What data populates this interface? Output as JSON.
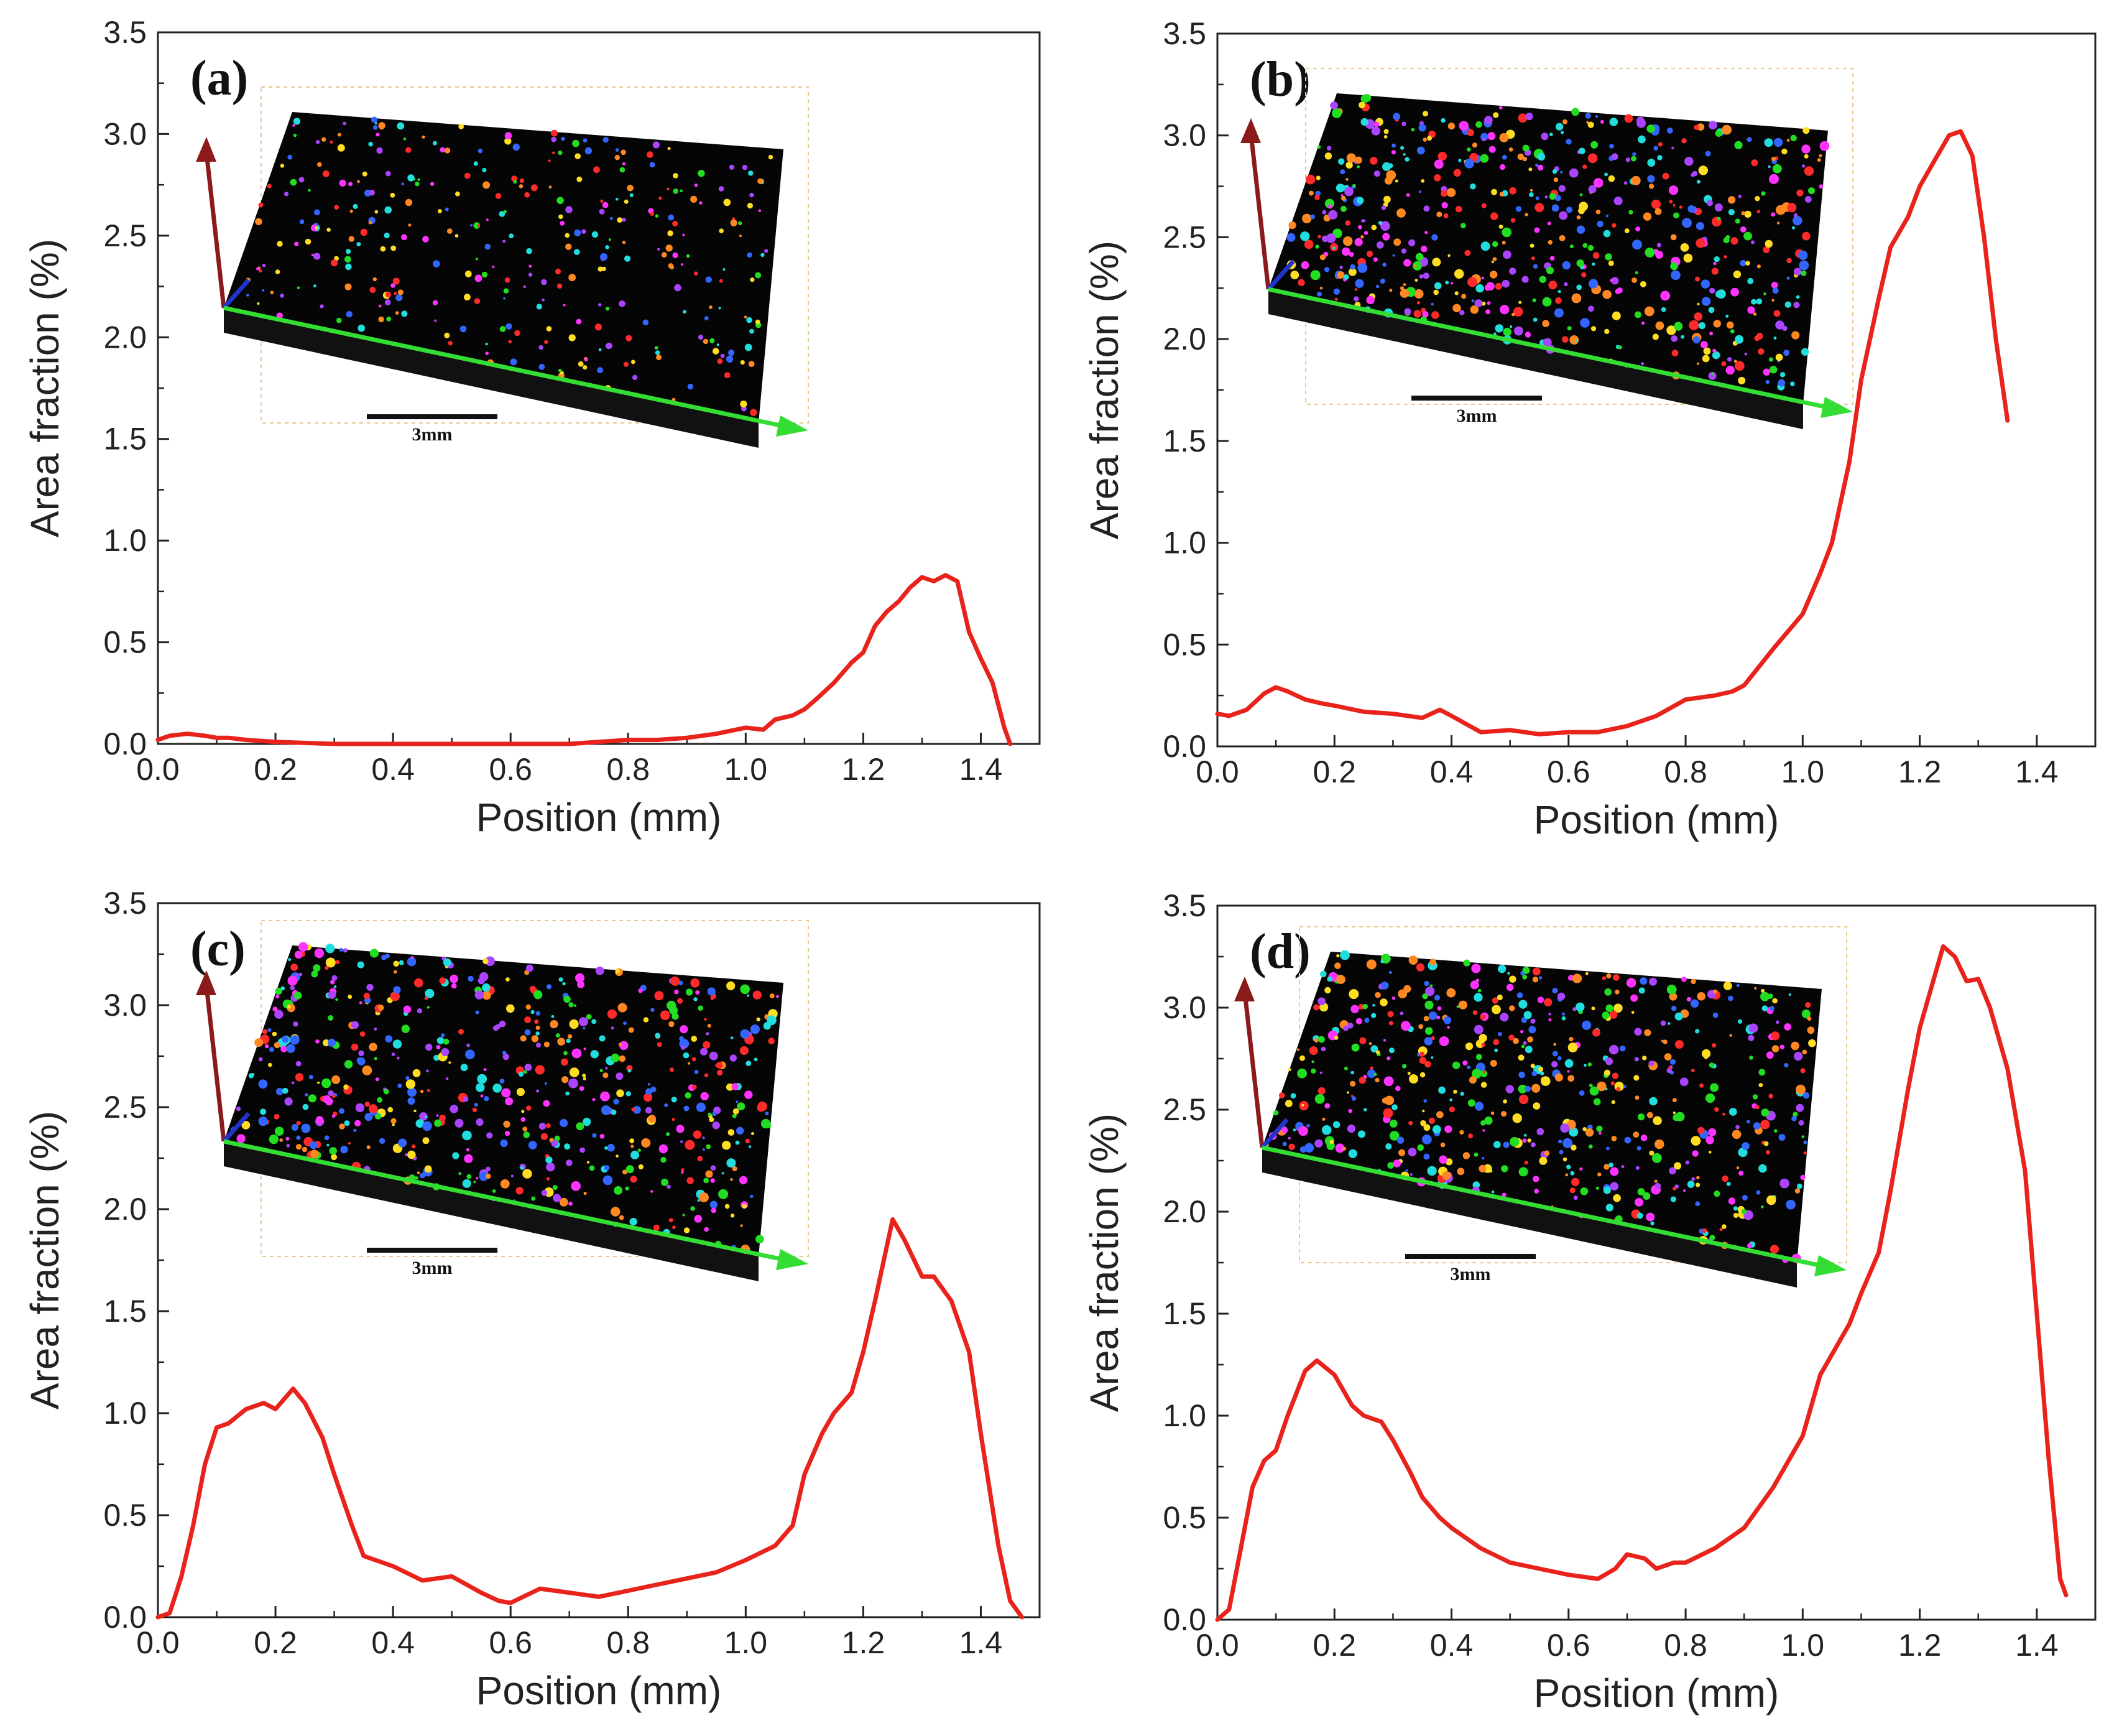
{
  "chart_data": [
    {
      "type": "line",
      "panel_label": "(a)",
      "xlabel": "Position (mm)",
      "ylabel": "Area fraction (%)",
      "xlim": [
        0.0,
        1.5
      ],
      "ylim": [
        0.0,
        3.5
      ],
      "x_ticks": [
        "0.0",
        "0.2",
        "0.4",
        "0.6",
        "0.8",
        "1.0",
        "1.2",
        "1.4"
      ],
      "y_ticks": [
        "0.0",
        "0.5",
        "1.0",
        "1.5",
        "2.0",
        "2.5",
        "3.0",
        "3.5"
      ],
      "grid": false,
      "line_color": "#e8231c",
      "inset_scale_label": "3mm",
      "series": [
        {
          "x": [
            0.0,
            0.02,
            0.05,
            0.08,
            0.1,
            0.12,
            0.15,
            0.2,
            0.3,
            0.4,
            0.5,
            0.6,
            0.7,
            0.8,
            0.85,
            0.9,
            0.95,
            1.0,
            1.03,
            1.05,
            1.08,
            1.1,
            1.12,
            1.15,
            1.18,
            1.2,
            1.22,
            1.24,
            1.26,
            1.28,
            1.3,
            1.32,
            1.34,
            1.36,
            1.38,
            1.4,
            1.42,
            1.44,
            1.45
          ],
          "y": [
            0.02,
            0.04,
            0.05,
            0.04,
            0.03,
            0.03,
            0.02,
            0.01,
            0.0,
            0.0,
            0.0,
            0.0,
            0.0,
            0.02,
            0.02,
            0.03,
            0.05,
            0.08,
            0.07,
            0.12,
            0.14,
            0.17,
            0.22,
            0.3,
            0.4,
            0.45,
            0.58,
            0.65,
            0.7,
            0.77,
            0.82,
            0.8,
            0.83,
            0.8,
            0.55,
            0.42,
            0.3,
            0.08,
            0.0
          ]
        }
      ]
    },
    {
      "type": "line",
      "panel_label": "(b)",
      "xlabel": "Position (mm)",
      "ylabel": "Area fraction (%)",
      "xlim": [
        0.0,
        1.5
      ],
      "ylim": [
        0.0,
        3.5
      ],
      "x_ticks": [
        "0.0",
        "0.2",
        "0.4",
        "0.6",
        "0.8",
        "1.0",
        "1.2",
        "1.4"
      ],
      "y_ticks": [
        "0.0",
        "0.5",
        "1.0",
        "1.5",
        "2.0",
        "2.5",
        "3.0",
        "3.5"
      ],
      "grid": false,
      "line_color": "#e8231c",
      "inset_scale_label": "3mm",
      "series": [
        {
          "x": [
            0.0,
            0.02,
            0.05,
            0.08,
            0.1,
            0.12,
            0.15,
            0.18,
            0.2,
            0.25,
            0.3,
            0.35,
            0.38,
            0.4,
            0.45,
            0.5,
            0.55,
            0.6,
            0.65,
            0.7,
            0.75,
            0.8,
            0.85,
            0.88,
            0.9,
            0.95,
            1.0,
            1.03,
            1.05,
            1.08,
            1.1,
            1.13,
            1.15,
            1.18,
            1.2,
            1.22,
            1.25,
            1.27,
            1.29,
            1.31,
            1.33,
            1.35
          ],
          "y": [
            0.16,
            0.15,
            0.18,
            0.26,
            0.29,
            0.27,
            0.23,
            0.21,
            0.2,
            0.17,
            0.16,
            0.14,
            0.18,
            0.15,
            0.07,
            0.08,
            0.06,
            0.07,
            0.07,
            0.1,
            0.15,
            0.23,
            0.25,
            0.27,
            0.3,
            0.48,
            0.65,
            0.85,
            1.0,
            1.4,
            1.8,
            2.2,
            2.45,
            2.6,
            2.75,
            2.85,
            3.0,
            3.02,
            2.9,
            2.5,
            2.0,
            1.6
          ]
        }
      ]
    },
    {
      "type": "line",
      "panel_label": "(c)",
      "xlabel": "Position (mm)",
      "ylabel": "Area fraction (%)",
      "xlim": [
        0.0,
        1.5
      ],
      "ylim": [
        0.0,
        3.5
      ],
      "x_ticks": [
        "0.0",
        "0.2",
        "0.4",
        "0.6",
        "0.8",
        "1.0",
        "1.2",
        "1.4"
      ],
      "y_ticks": [
        "0.0",
        "0.5",
        "1.0",
        "1.5",
        "2.0",
        "2.5",
        "3.0",
        "3.5"
      ],
      "grid": false,
      "line_color": "#e8231c",
      "inset_scale_label": "3mm",
      "series": [
        {
          "x": [
            0.0,
            0.02,
            0.04,
            0.06,
            0.08,
            0.1,
            0.12,
            0.15,
            0.18,
            0.2,
            0.23,
            0.25,
            0.28,
            0.3,
            0.33,
            0.35,
            0.38,
            0.4,
            0.45,
            0.5,
            0.55,
            0.58,
            0.6,
            0.65,
            0.7,
            0.75,
            0.8,
            0.85,
            0.9,
            0.95,
            1.0,
            1.05,
            1.08,
            1.1,
            1.13,
            1.15,
            1.18,
            1.2,
            1.22,
            1.25,
            1.27,
            1.3,
            1.32,
            1.35,
            1.38,
            1.4,
            1.43,
            1.45,
            1.47
          ],
          "y": [
            0.0,
            0.02,
            0.2,
            0.45,
            0.75,
            0.93,
            0.95,
            1.02,
            1.05,
            1.02,
            1.12,
            1.05,
            0.88,
            0.7,
            0.45,
            0.3,
            0.27,
            0.25,
            0.18,
            0.2,
            0.12,
            0.08,
            0.07,
            0.14,
            0.12,
            0.1,
            0.13,
            0.16,
            0.19,
            0.22,
            0.28,
            0.35,
            0.45,
            0.7,
            0.9,
            1.0,
            1.1,
            1.3,
            1.55,
            1.95,
            1.85,
            1.67,
            1.67,
            1.55,
            1.3,
            0.9,
            0.35,
            0.08,
            0.0
          ]
        }
      ]
    },
    {
      "type": "line",
      "panel_label": "(d)",
      "xlabel": "Position (mm)",
      "ylabel": "Area fraction (%)",
      "xlim": [
        0.0,
        1.5
      ],
      "ylim": [
        0.0,
        3.5
      ],
      "x_ticks": [
        "0.0",
        "0.2",
        "0.4",
        "0.6",
        "0.8",
        "1.0",
        "1.2",
        "1.4"
      ],
      "y_ticks": [
        "0.0",
        "0.5",
        "1.0",
        "1.5",
        "2.0",
        "2.5",
        "3.0",
        "3.5"
      ],
      "grid": false,
      "line_color": "#e8231c",
      "inset_scale_label": "3mm",
      "series": [
        {
          "x": [
            0.0,
            0.02,
            0.04,
            0.06,
            0.08,
            0.1,
            0.12,
            0.15,
            0.17,
            0.2,
            0.23,
            0.25,
            0.28,
            0.3,
            0.33,
            0.35,
            0.38,
            0.4,
            0.45,
            0.5,
            0.55,
            0.6,
            0.65,
            0.68,
            0.7,
            0.73,
            0.75,
            0.78,
            0.8,
            0.85,
            0.9,
            0.95,
            1.0,
            1.03,
            1.05,
            1.08,
            1.1,
            1.13,
            1.15,
            1.18,
            1.2,
            1.22,
            1.24,
            1.26,
            1.28,
            1.3,
            1.32,
            1.35,
            1.38,
            1.4,
            1.42,
            1.44,
            1.45
          ],
          "y": [
            0.0,
            0.05,
            0.35,
            0.65,
            0.78,
            0.83,
            1.0,
            1.22,
            1.27,
            1.2,
            1.05,
            1.0,
            0.97,
            0.88,
            0.72,
            0.6,
            0.5,
            0.45,
            0.35,
            0.28,
            0.25,
            0.22,
            0.2,
            0.25,
            0.32,
            0.3,
            0.25,
            0.28,
            0.28,
            0.35,
            0.45,
            0.65,
            0.9,
            1.2,
            1.3,
            1.45,
            1.6,
            1.8,
            2.1,
            2.6,
            2.9,
            3.1,
            3.3,
            3.25,
            3.13,
            3.14,
            3.0,
            2.7,
            2.2,
            1.5,
            0.8,
            0.2,
            0.12
          ]
        }
      ]
    }
  ]
}
